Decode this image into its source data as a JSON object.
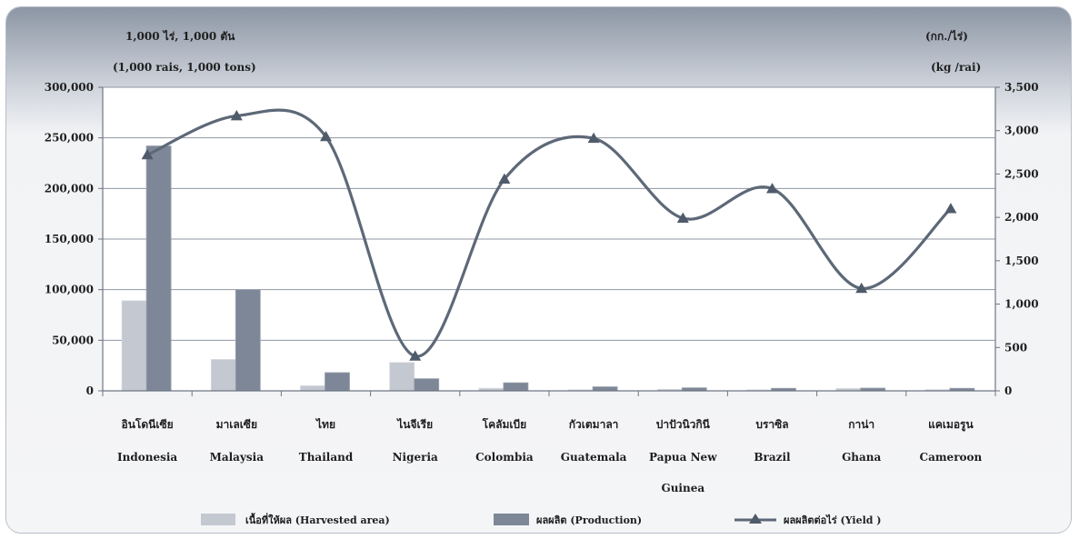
{
  "chart_data": {
    "type": "bar",
    "left_axis_unit": [
      "1,000 ไร่, 1,000 ตัน",
      "(1,000 rais, 1,000 tons)"
    ],
    "right_axis_unit": [
      "(กก./ไร่)",
      "(kg /rai)"
    ],
    "y_left": {
      "lim": [
        0,
        300000
      ],
      "ticks": [
        0,
        50000,
        100000,
        150000,
        200000,
        250000,
        300000
      ],
      "tick_labels": [
        "0",
        "50,000",
        "100,000",
        "150,000",
        "200,000",
        "250,000",
        "300,000"
      ]
    },
    "y_right": {
      "lim": [
        0,
        3500
      ],
      "ticks": [
        0,
        500,
        1000,
        1500,
        2000,
        2500,
        3000,
        3500
      ],
      "tick_labels": [
        "0",
        "500",
        "1,000",
        "1,500",
        "2,000",
        "2,500",
        "3,000",
        "3,500"
      ]
    },
    "grid": true,
    "legend_position": "bottom",
    "categories": [
      {
        "thai": "อินโดนีเซีย",
        "en": [
          "Indonesia"
        ]
      },
      {
        "thai": "มาเลเซีย",
        "en": [
          "Malaysia"
        ]
      },
      {
        "thai": "ไทย",
        "en": [
          "Thailand"
        ]
      },
      {
        "thai": "ไนจีเรีย",
        "en": [
          "Nigeria"
        ]
      },
      {
        "thai": "โคลัมเบีย",
        "en": [
          "Colombia"
        ]
      },
      {
        "thai": "กัวเตมาลา",
        "en": [
          "Guatemala"
        ]
      },
      {
        "thai": "ปาปัวนิวกินี",
        "en": [
          "Papua New",
          "Guinea"
        ]
      },
      {
        "thai": "บราซิล",
        "en": [
          "Brazil"
        ]
      },
      {
        "thai": "กาน่า",
        "en": [
          "Ghana"
        ]
      },
      {
        "thai": "แคเมอรูน",
        "en": [
          "Cameroon"
        ]
      }
    ],
    "series": [
      {
        "name": "เนื้อที่ให้ผล (Harvested area)",
        "type": "bar",
        "axis": "left",
        "color": "#c3c8d1",
        "values": [
          89000,
          31000,
          5000,
          28000,
          2500,
          1000,
          1500,
          1000,
          2300,
          1200
        ]
      },
      {
        "name": "ผลผลิต (Production)",
        "type": "bar",
        "axis": "left",
        "color": "#7d8797",
        "values": [
          242000,
          100000,
          18000,
          12000,
          8000,
          4000,
          3000,
          2500,
          2700,
          2500
        ]
      },
      {
        "name": "ผลผลิตต่อไร่ (Yield )",
        "type": "line",
        "axis": "right",
        "color": "#5d6878",
        "values": [
          2720,
          3170,
          2930,
          400,
          2440,
          2910,
          1990,
          2330,
          1180,
          2100
        ]
      }
    ]
  }
}
